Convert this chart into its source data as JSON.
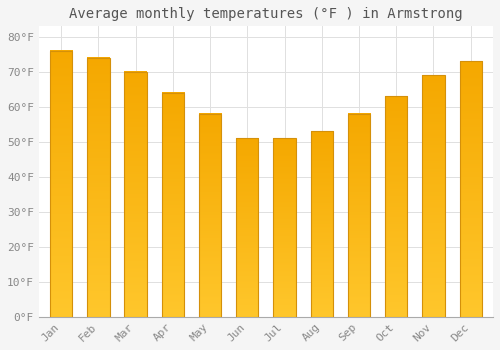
{
  "title": "Average monthly temperatures (°F ) in Armstrong",
  "months": [
    "Jan",
    "Feb",
    "Mar",
    "Apr",
    "May",
    "Jun",
    "Jul",
    "Aug",
    "Sep",
    "Oct",
    "Nov",
    "Dec"
  ],
  "values": [
    76,
    74,
    70,
    64,
    58,
    51,
    51,
    53,
    58,
    63,
    69,
    73
  ],
  "bar_color_top": "#FFC72C",
  "bar_color_bottom": "#F5A800",
  "bar_color_edge": "#D4900A",
  "background_color": "#F5F5F5",
  "plot_bg_color": "#FFFFFF",
  "ytick_labels": [
    "0°F",
    "10°F",
    "20°F",
    "30°F",
    "40°F",
    "50°F",
    "60°F",
    "70°F",
    "80°F"
  ],
  "ytick_values": [
    0,
    10,
    20,
    30,
    40,
    50,
    60,
    70,
    80
  ],
  "ylim": [
    0,
    83
  ],
  "grid_color": "#E0E0E0",
  "title_fontsize": 10,
  "tick_fontsize": 8,
  "tick_label_color": "#888888",
  "title_color": "#555555",
  "bar_width": 0.6
}
